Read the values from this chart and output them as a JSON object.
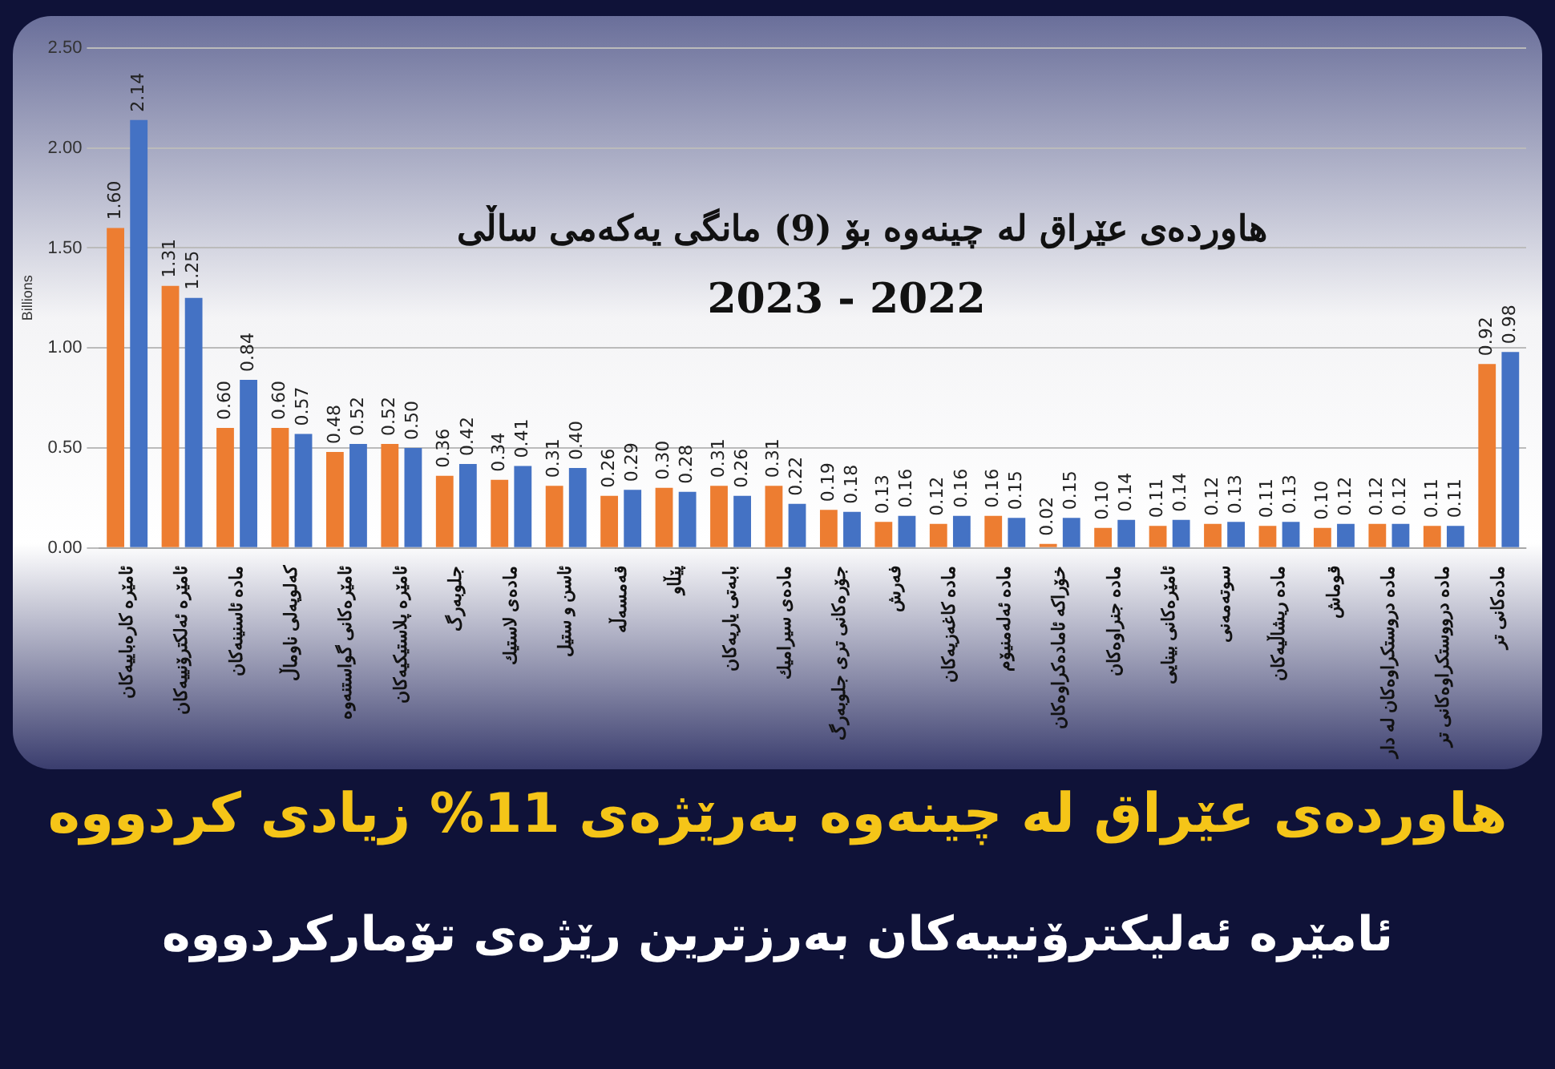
{
  "chart_data": {
    "type": "bar",
    "title": "هاوردەی عێراق لە چینەوە بۆ (9) مانگی یەکەمی ساڵی",
    "subtitle": "2023 - 2022",
    "ylabel": "Billions",
    "categories": [
      "ئامێرە کارەباییەکان",
      "ئامێرە ئەلکترۆنییەکان",
      "مادە ئاسنینەکان",
      "کەلوپەلی ناوماڵ",
      "ئامێرەکانی گواستنەوە",
      "ئامێرە پلاستیکیەکان",
      "جلوبەرگ",
      "مادەی لاستیك",
      "ئاسن و ستیل",
      "قەمسەڵە",
      "پێڵاو",
      "بابەتی یاریەکان",
      "مادەی سیرامیك",
      "جۆرەکانی تری جلوبەرگ",
      "فەرش",
      "مادە کاغەزیەکان",
      "مادە ئەلەمنیۆم",
      "خۆراکە ئامادەکراوەکان",
      "مادە جنراوەکان",
      "ئامێرەکانی بینایی",
      "سوتەمەنی",
      "مادە ریشاڵیەکان",
      "قوماش",
      "مادە دروستکراوەکان لە دار",
      "مادە درووستکراوەکانی تر",
      "مادەکانی تر"
    ],
    "series": [
      {
        "color": "#ed7d31",
        "values": [
          1.6,
          1.31,
          0.6,
          0.6,
          0.48,
          0.52,
          0.36,
          0.34,
          0.31,
          0.26,
          0.3,
          0.31,
          0.31,
          0.19,
          0.13,
          0.12,
          0.16,
          0.02,
          0.1,
          0.11,
          0.12,
          0.11,
          0.1,
          0.12,
          0.11,
          0.92
        ],
        "value_labels": [
          "1.60",
          "1.31",
          "0.60",
          "0.60",
          "0.48",
          "0.52",
          "0.36",
          "0.34",
          "0.31",
          "0.26",
          "0.30",
          "0.31",
          "0.31",
          "0.19",
          "0.13",
          "0.12",
          "0.16",
          "0.02",
          "0.10",
          "0.11",
          "0.12",
          "0.11",
          "0.10",
          "0.12",
          "0.11",
          "0.92"
        ]
      },
      {
        "color": "#4472c4",
        "values": [
          2.14,
          1.25,
          0.84,
          0.57,
          0.52,
          0.5,
          0.42,
          0.41,
          0.4,
          0.29,
          0.28,
          0.26,
          0.22,
          0.18,
          0.16,
          0.16,
          0.15,
          0.15,
          0.14,
          0.14,
          0.13,
          0.13,
          0.12,
          0.12,
          0.11,
          0.98
        ],
        "value_labels": [
          "2.14",
          "1.25",
          "0.84",
          "0.57",
          "0.52",
          "0.50",
          "0.42",
          "0.41",
          "0.40",
          "0.29",
          "0.28",
          "0.26",
          "0.22",
          "0.18",
          "0.16",
          "0.16",
          "0.15",
          "0.15",
          "0.14",
          "0.14",
          "0.13",
          "0.13",
          "0.12",
          "0.12",
          "0.11",
          "0.98"
        ]
      }
    ],
    "ylim": [
      0,
      2.5
    ],
    "yticks": [
      {
        "value": 0,
        "label": "0.00"
      },
      {
        "value": 0.5,
        "label": "0.50"
      },
      {
        "value": 1,
        "label": "1.00"
      },
      {
        "value": 1.5,
        "label": "1.50"
      },
      {
        "value": 2,
        "label": "2.00"
      },
      {
        "value": 2.5,
        "label": "2.50"
      }
    ],
    "grid": "y",
    "legend": false,
    "annotations": [
      "هاوردەی عێراق لە چینەوە بەرێژەی 11% زیادی کردووە",
      "ئامێرە ئەلیکترۆنییەکان بەرزترین رێژەی تۆمارکردووە"
    ]
  }
}
